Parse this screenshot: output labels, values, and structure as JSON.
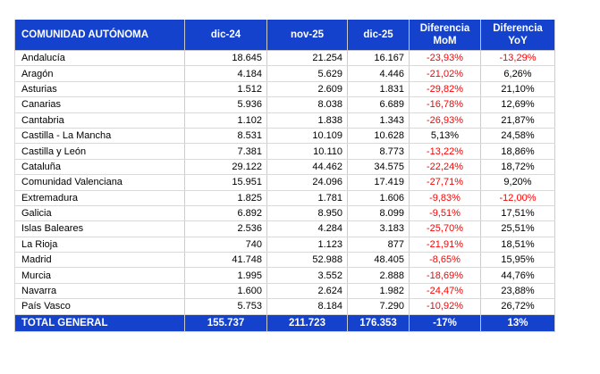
{
  "colors": {
    "header_bg": "#1542CC",
    "header_text": "#FFFFFF",
    "body_text": "#000000",
    "negative_value": "#FF0000",
    "gridline": "#CCCCCC"
  },
  "chart_data": {
    "type": "table",
    "columns": [
      "COMUNIDAD AUTÓNOMA",
      "dic-24",
      "nov-25",
      "dic-25",
      "Diferencia\nMoM",
      "Diferencia\nYoY"
    ],
    "column_keys": [
      "region",
      "dic-24",
      "nov-25",
      "dic-25",
      "diferencia-mom",
      "diferencia-yoy"
    ],
    "rows": [
      [
        "Andalucía",
        "18.645",
        "21.254",
        "16.167",
        "-23,93%",
        "-13,29%"
      ],
      [
        "Aragón",
        "4.184",
        "5.629",
        "4.446",
        "-21,02%",
        "6,26%"
      ],
      [
        "Asturias",
        "1.512",
        "2.609",
        "1.831",
        "-29,82%",
        "21,10%"
      ],
      [
        "Canarias",
        "5.936",
        "8.038",
        "6.689",
        "-16,78%",
        "12,69%"
      ],
      [
        "Cantabria",
        "1.102",
        "1.838",
        "1.343",
        "-26,93%",
        "21,87%"
      ],
      [
        "Castilla - La Mancha",
        "8.531",
        "10.109",
        "10.628",
        "5,13%",
        "24,58%"
      ],
      [
        "Castilla y León",
        "7.381",
        "10.110",
        "8.773",
        "-13,22%",
        "18,86%"
      ],
      [
        "Cataluña",
        "29.122",
        "44.462",
        "34.575",
        "-22,24%",
        "18,72%"
      ],
      [
        "Comunidad Valenciana",
        "15.951",
        "24.096",
        "17.419",
        "-27,71%",
        "9,20%"
      ],
      [
        "Extremadura",
        "1.825",
        "1.781",
        "1.606",
        "-9,83%",
        "-12,00%"
      ],
      [
        "Galicia",
        "6.892",
        "8.950",
        "8.099",
        "-9,51%",
        "17,51%"
      ],
      [
        "Islas Baleares",
        "2.536",
        "4.284",
        "3.183",
        "-25,70%",
        "25,51%"
      ],
      [
        "La Rioja",
        "740",
        "1.123",
        "877",
        "-21,91%",
        "18,51%"
      ],
      [
        "Madrid",
        "41.748",
        "52.988",
        "48.405",
        "-8,65%",
        "15,95%"
      ],
      [
        "Murcia",
        "1.995",
        "3.552",
        "2.888",
        "-18,69%",
        "44,76%"
      ],
      [
        "Navarra",
        "1.600",
        "2.624",
        "1.982",
        "-24,47%",
        "23,88%"
      ],
      [
        "País Vasco",
        "5.753",
        "8.184",
        "7.290",
        "-10,92%",
        "26,72%"
      ]
    ],
    "total": [
      "TOTAL GENERAL",
      "155.737",
      "211.723",
      "176.353",
      "-17%",
      "13%"
    ]
  }
}
